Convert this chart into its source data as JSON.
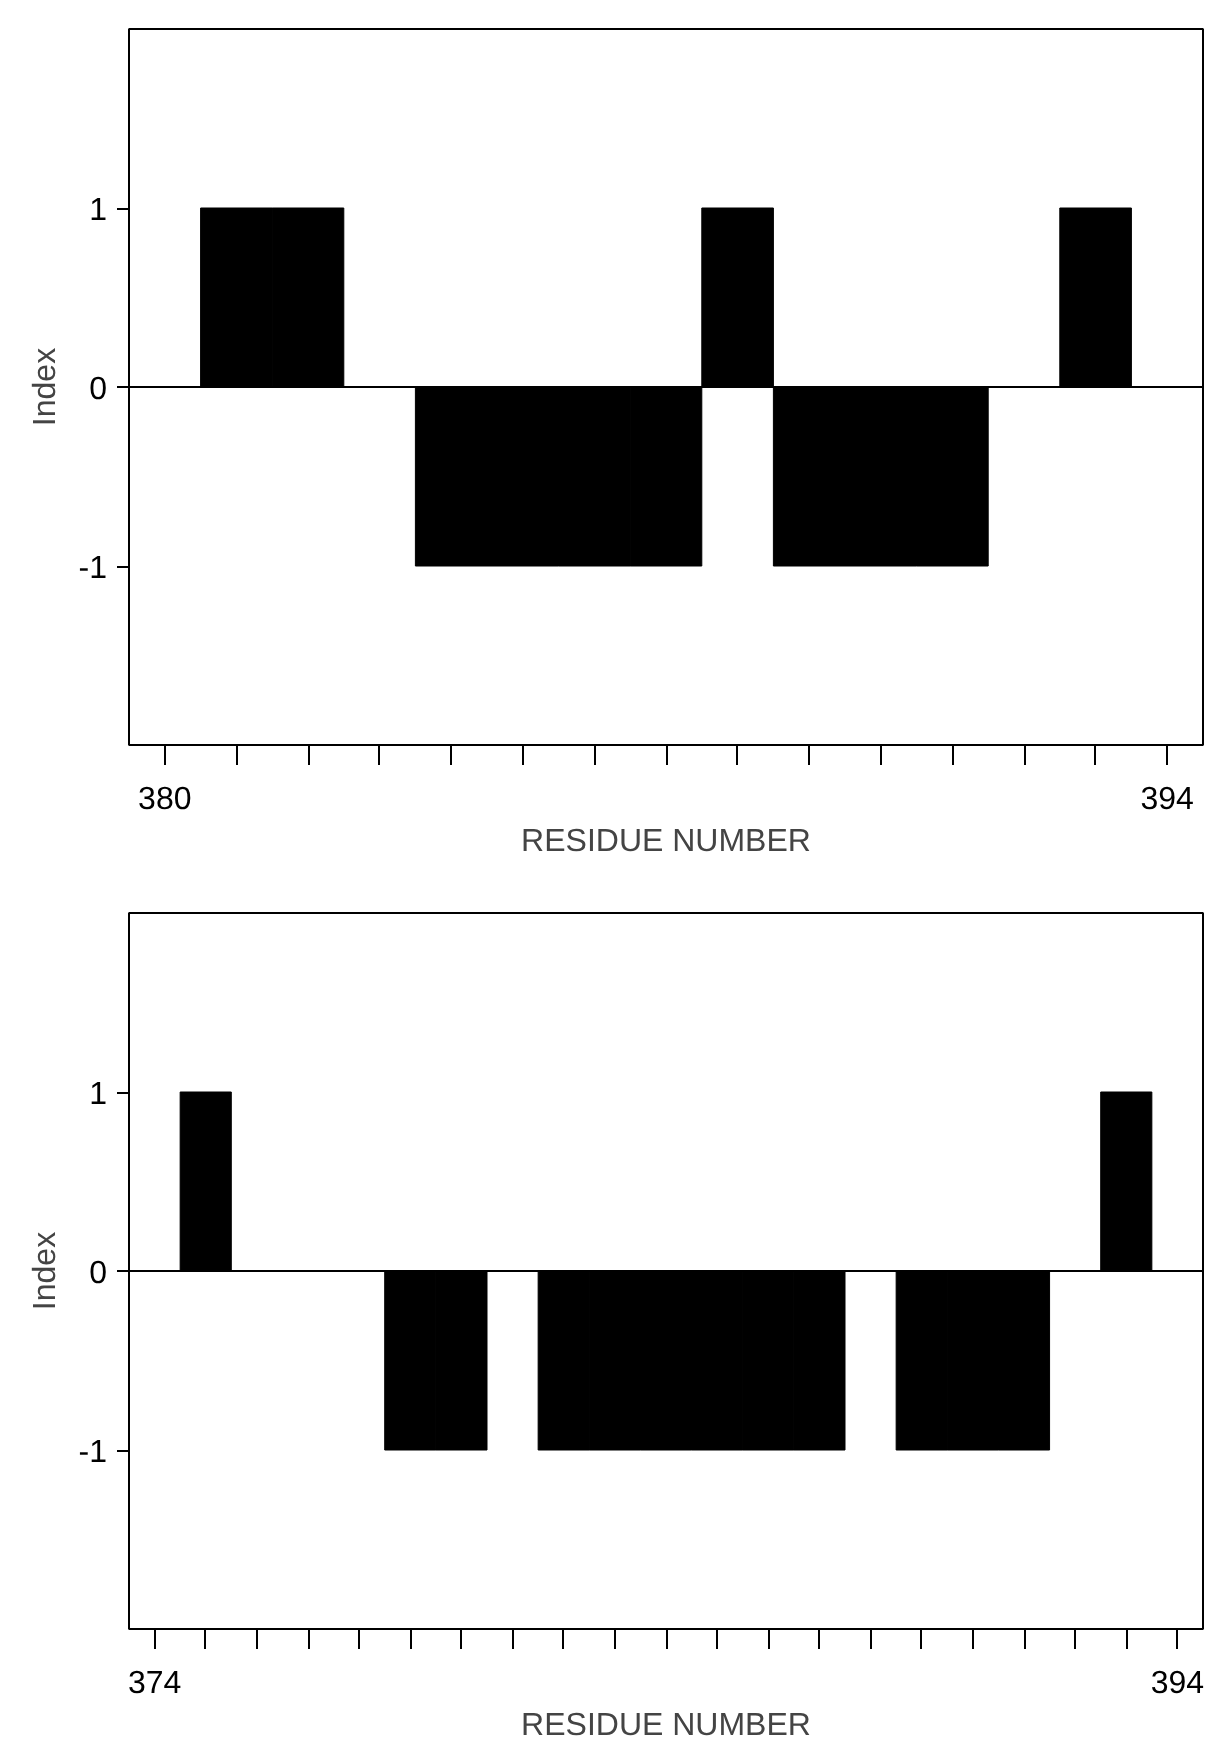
{
  "chart_data": [
    {
      "type": "bar",
      "xlabel": "RESIDUE NUMBER",
      "ylabel": "Index",
      "x": [
        381,
        382,
        384,
        385,
        386,
        387,
        388,
        389,
        390,
        391,
        393
      ],
      "series": [
        {
          "color": "#000000",
          "values": [
            1,
            1,
            -1,
            -1,
            -1,
            -1,
            1,
            -1,
            -1,
            -1,
            1
          ]
        }
      ],
      "xlim": [
        379.5,
        394.5
      ],
      "ylim": [
        -2,
        2
      ],
      "xticks": [
        380,
        {
          "value": 381,
          "label": null
        },
        {
          "value": 382,
          "label": null
        },
        {
          "value": 383,
          "label": null
        },
        {
          "value": 384,
          "label": null
        },
        {
          "value": 385,
          "label": null
        },
        {
          "value": 386,
          "label": null
        },
        {
          "value": 387,
          "label": null
        },
        {
          "value": 388,
          "label": null
        },
        {
          "value": 389,
          "label": null
        },
        {
          "value": 390,
          "label": null
        },
        {
          "value": 391,
          "label": null
        },
        {
          "value": 392,
          "label": null
        },
        {
          "value": 393,
          "label": null
        },
        394
      ],
      "yticks": [
        -1,
        0,
        1
      ],
      "ref_lines": [
        {
          "axis": "y",
          "value": 0,
          "label": null,
          "color": "#000000"
        }
      ]
    },
    {
      "type": "bar",
      "xlabel": "RESIDUE NUMBER",
      "ylabel": "Index",
      "x": [
        375,
        379,
        380,
        382,
        383,
        384,
        385,
        386,
        387,
        389,
        390,
        391,
        393
      ],
      "series": [
        {
          "color": "#000000",
          "values": [
            1,
            -1,
            -1,
            -1,
            -1,
            -1,
            -1,
            -1,
            -1,
            -1,
            -1,
            -1,
            1
          ]
        }
      ],
      "xlim": [
        373.5,
        394.5
      ],
      "ylim": [
        -2,
        2
      ],
      "xticks": [
        374,
        {
          "value": 375,
          "label": null
        },
        {
          "value": 376,
          "label": null
        },
        {
          "value": 377,
          "label": null
        },
        {
          "value": 378,
          "label": null
        },
        {
          "value": 379,
          "label": null
        },
        {
          "value": 380,
          "label": null
        },
        {
          "value": 381,
          "label": null
        },
        {
          "value": 382,
          "label": null
        },
        {
          "value": 383,
          "label": null
        },
        {
          "value": 384,
          "label": null
        },
        {
          "value": 385,
          "label": null
        },
        {
          "value": 386,
          "label": null
        },
        {
          "value": 387,
          "label": null
        },
        {
          "value": 388,
          "label": null
        },
        {
          "value": 389,
          "label": null
        },
        {
          "value": 390,
          "label": null
        },
        {
          "value": 391,
          "label": null
        },
        {
          "value": 392,
          "label": null
        },
        {
          "value": 393,
          "label": null
        },
        394
      ],
      "yticks": [
        -1,
        0,
        1
      ],
      "ref_lines": [
        {
          "axis": "y",
          "value": 0,
          "label": null,
          "color": "#000000"
        }
      ]
    }
  ]
}
